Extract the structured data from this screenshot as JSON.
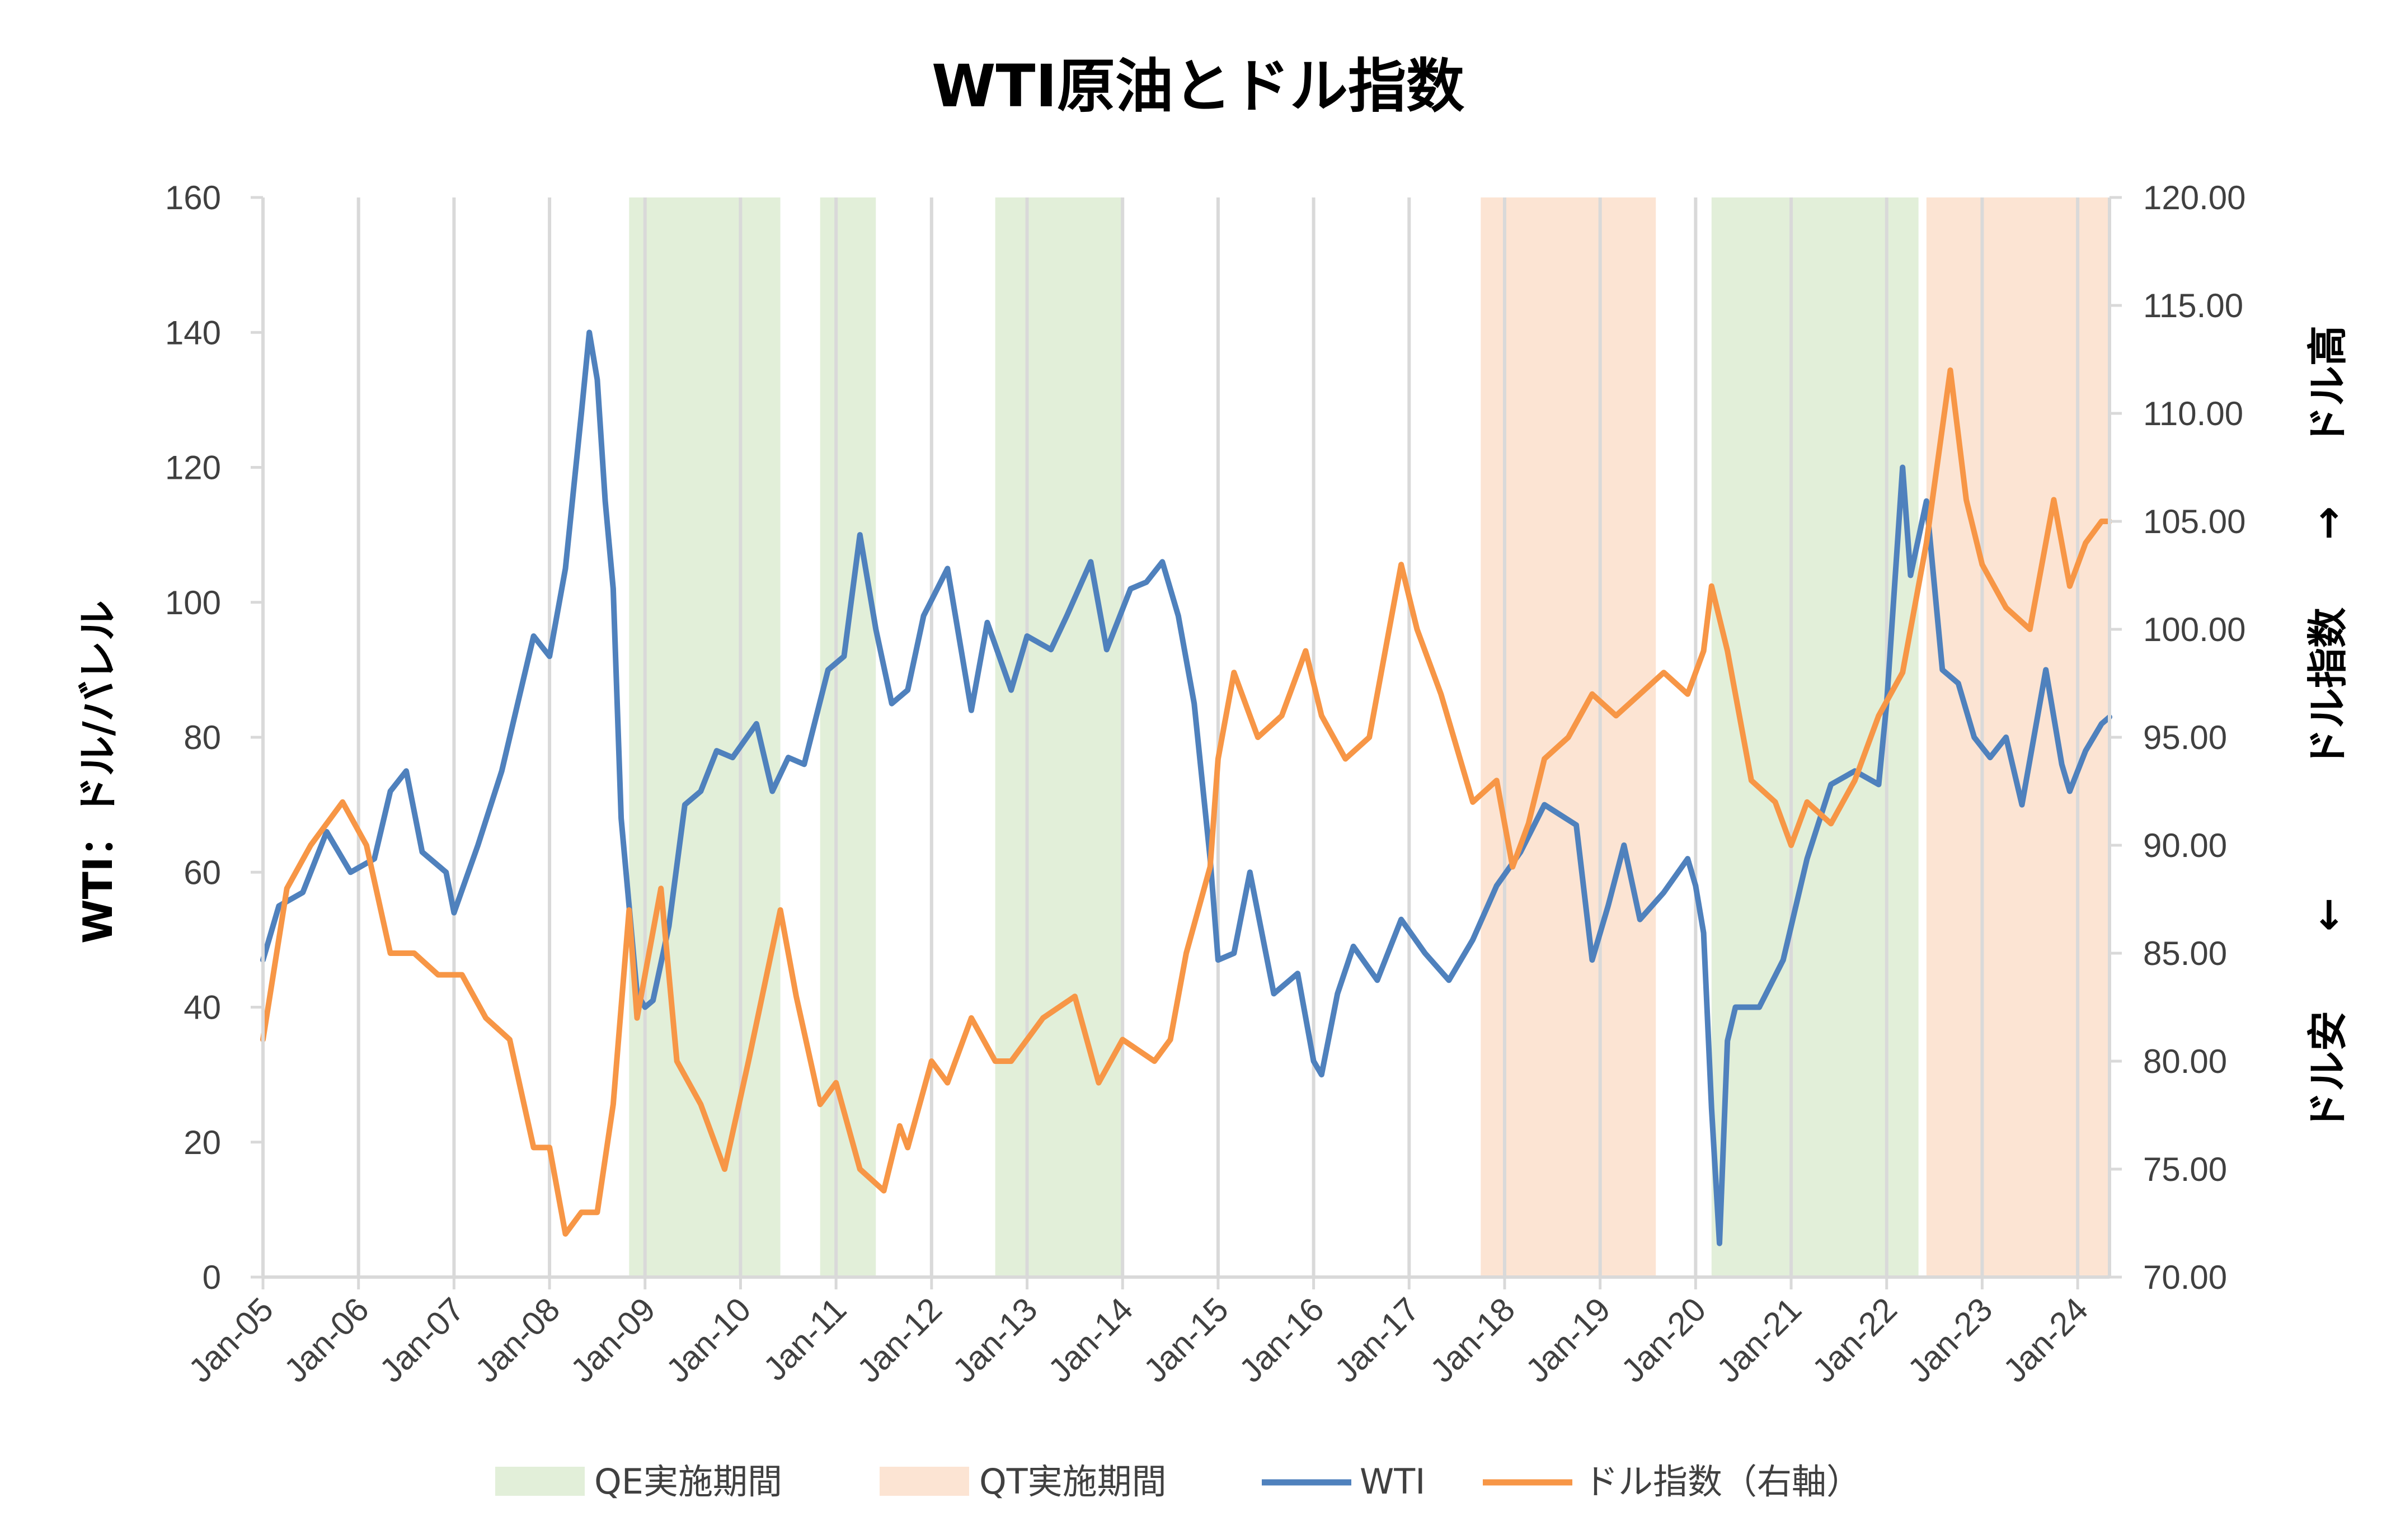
{
  "chart_data": {
    "type": "line",
    "title": "WTI原油とドル指数",
    "ylabel_left": "WTI：ドル/バレル",
    "ylabel_right": {
      "top": "ドル高",
      "up_arrow": "→",
      "middle": "ドル指数",
      "down_arrow": "←",
      "bottom": "ドル安"
    },
    "xlim": [
      "2005-01",
      "2024-05"
    ],
    "ylim_left": [
      0,
      160
    ],
    "ylim_right": [
      70,
      120
    ],
    "x_ticks": [
      "Jan-05",
      "Jan-06",
      "Jan-07",
      "Jan-08",
      "Jan-09",
      "Jan-10",
      "Jan-11",
      "Jan-12",
      "Jan-13",
      "Jan-14",
      "Jan-15",
      "Jan-16",
      "Jan-17",
      "Jan-18",
      "Jan-19",
      "Jan-20",
      "Jan-21",
      "Jan-22",
      "Jan-23",
      "Jan-24"
    ],
    "y_ticks_left": [
      "0",
      "20",
      "40",
      "60",
      "80",
      "100",
      "120",
      "140",
      "160"
    ],
    "y_ticks_right": [
      "70.00",
      "75.00",
      "80.00",
      "85.00",
      "90.00",
      "95.00",
      "100.00",
      "105.00",
      "110.00",
      "115.00",
      "120.00"
    ],
    "grid": "vertical",
    "legend_position": "bottom",
    "shaded_periods": [
      {
        "name": "QE実施期間",
        "color": "#e2efd9",
        "periods": [
          [
            "2008-11",
            "2010-06"
          ],
          [
            "2010-11",
            "2011-06"
          ],
          [
            "2012-09",
            "2014-01"
          ],
          [
            "2020-03",
            "2022-05"
          ]
        ]
      },
      {
        "name": "QT実施期間",
        "color": "#fce4d3",
        "periods": [
          [
            "2017-10",
            "2019-08"
          ],
          [
            "2022-06",
            "2024-05"
          ]
        ]
      }
    ],
    "series": [
      {
        "name": "WTI",
        "axis": "left",
        "color": "#4f81bd",
        "x": [
          "2005-01",
          "2005-03",
          "2005-06",
          "2005-09",
          "2005-12",
          "2006-03",
          "2006-05",
          "2006-07",
          "2006-09",
          "2006-12",
          "2007-01",
          "2007-04",
          "2007-07",
          "2007-10",
          "2007-11",
          "2008-01",
          "2008-03",
          "2008-05",
          "2008-06",
          "2008-07",
          "2008-08",
          "2008-09",
          "2008-10",
          "2008-11",
          "2008-12",
          "2009-01",
          "2009-02",
          "2009-04",
          "2009-06",
          "2009-08",
          "2009-10",
          "2009-12",
          "2010-03",
          "2010-05",
          "2010-07",
          "2010-09",
          "2010-12",
          "2011-02",
          "2011-04",
          "2011-06",
          "2011-08",
          "2011-10",
          "2011-12",
          "2012-03",
          "2012-06",
          "2012-08",
          "2012-11",
          "2013-01",
          "2013-04",
          "2013-06",
          "2013-09",
          "2013-11",
          "2014-02",
          "2014-04",
          "2014-06",
          "2014-08",
          "2014-10",
          "2014-12",
          "2015-01",
          "2015-03",
          "2015-05",
          "2015-08",
          "2015-11",
          "2016-01",
          "2016-02",
          "2016-04",
          "2016-06",
          "2016-09",
          "2016-12",
          "2017-03",
          "2017-06",
          "2017-09",
          "2017-12",
          "2018-03",
          "2018-06",
          "2018-10",
          "2018-12",
          "2019-02",
          "2019-04",
          "2019-06",
          "2019-09",
          "2019-12",
          "2020-01",
          "2020-02",
          "2020-03",
          "2020-04",
          "2020-05",
          "2020-06",
          "2020-09",
          "2020-12",
          "2021-03",
          "2021-06",
          "2021-09",
          "2021-12",
          "2022-01",
          "2022-03",
          "2022-04",
          "2022-06",
          "2022-08",
          "2022-10",
          "2022-12",
          "2023-02",
          "2023-04",
          "2023-06",
          "2023-09",
          "2023-11",
          "2023-12",
          "2024-02",
          "2024-04",
          "2024-05"
        ],
        "values": [
          47,
          55,
          57,
          66,
          60,
          62,
          72,
          75,
          63,
          60,
          54,
          64,
          75,
          90,
          95,
          92,
          105,
          128,
          140,
          133,
          115,
          102,
          68,
          55,
          42,
          40,
          41,
          52,
          70,
          72,
          78,
          77,
          82,
          72,
          77,
          76,
          90,
          92,
          110,
          96,
          85,
          87,
          98,
          105,
          84,
          97,
          87,
          95,
          93,
          98,
          106,
          93,
          102,
          103,
          106,
          98,
          85,
          62,
          47,
          48,
          60,
          42,
          45,
          32,
          30,
          42,
          49,
          44,
          53,
          48,
          44,
          50,
          58,
          63,
          70,
          67,
          47,
          55,
          64,
          53,
          57,
          62,
          58,
          51,
          25,
          5,
          35,
          40,
          40,
          47,
          62,
          73,
          75,
          73,
          85,
          120,
          104,
          115,
          90,
          88,
          80,
          77,
          80,
          70,
          90,
          76,
          72,
          78,
          82,
          83
        ]
      },
      {
        "name": "ドル指数（右軸）",
        "axis": "right",
        "color": "#f79646",
        "x": [
          "2005-01",
          "2005-04",
          "2005-07",
          "2005-11",
          "2006-02",
          "2006-05",
          "2006-08",
          "2006-11",
          "2007-02",
          "2007-05",
          "2007-08",
          "2007-11",
          "2008-01",
          "2008-03",
          "2008-05",
          "2008-07",
          "2008-09",
          "2008-11",
          "2008-12",
          "2009-03",
          "2009-05",
          "2009-08",
          "2009-11",
          "2010-02",
          "2010-06",
          "2010-08",
          "2010-11",
          "2011-01",
          "2011-04",
          "2011-07",
          "2011-09",
          "2011-10",
          "2012-01",
          "2012-03",
          "2012-06",
          "2012-09",
          "2012-11",
          "2013-03",
          "2013-07",
          "2013-10",
          "2014-01",
          "2014-05",
          "2014-07",
          "2014-09",
          "2014-12",
          "2015-01",
          "2015-03",
          "2015-06",
          "2015-09",
          "2015-12",
          "2016-02",
          "2016-05",
          "2016-08",
          "2016-11",
          "2016-12",
          "2017-02",
          "2017-05",
          "2017-09",
          "2017-12",
          "2018-02",
          "2018-04",
          "2018-06",
          "2018-09",
          "2018-12",
          "2019-03",
          "2019-06",
          "2019-09",
          "2019-12",
          "2020-02",
          "2020-03",
          "2020-05",
          "2020-08",
          "2020-11",
          "2021-01",
          "2021-03",
          "2021-06",
          "2021-09",
          "2021-12",
          "2022-03",
          "2022-06",
          "2022-09",
          "2022-11",
          "2023-01",
          "2023-04",
          "2023-07",
          "2023-10",
          "2023-12",
          "2024-02",
          "2024-04",
          "2024-05"
        ],
        "values": [
          81,
          88,
          90,
          92,
          90,
          85,
          85,
          84,
          84,
          82,
          81,
          76,
          76,
          72,
          73,
          73,
          78,
          87,
          82,
          88,
          80,
          78,
          75,
          80,
          87,
          83,
          78,
          79,
          75,
          74,
          77,
          76,
          80,
          79,
          82,
          80,
          80,
          82,
          83,
          79,
          81,
          80,
          81,
          85,
          89,
          94,
          98,
          95,
          96,
          99,
          96,
          94,
          95,
          101,
          103,
          100,
          97,
          92,
          93,
          89,
          91,
          94,
          95,
          97,
          96,
          97,
          98,
          97,
          99,
          102,
          99,
          93,
          92,
          90,
          92,
          91,
          93,
          96,
          98,
          104,
          112,
          106,
          103,
          101,
          100,
          106,
          102,
          104,
          105,
          105
        ]
      }
    ]
  }
}
